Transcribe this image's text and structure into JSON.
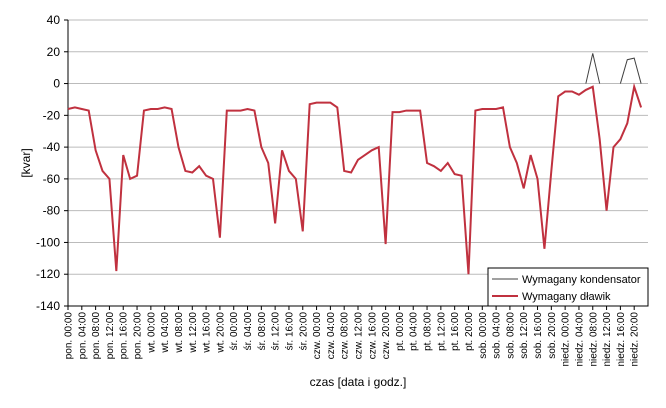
{
  "chart_data": {
    "type": "line",
    "y_label": "[kvar]",
    "x_label": "czas [data i godz.]",
    "x": [
      0,
      2,
      4,
      6,
      8,
      10,
      12,
      14,
      16,
      18,
      20,
      22,
      24,
      26,
      28,
      30,
      32,
      34,
      36,
      38,
      40,
      42,
      44,
      46,
      48,
      50,
      52,
      54,
      56,
      58,
      60,
      62,
      64,
      66,
      68,
      70,
      72,
      74,
      76,
      78,
      80,
      82,
      84,
      86,
      88,
      90,
      92,
      94,
      96,
      98,
      100,
      102,
      104,
      106,
      108,
      110,
      112,
      114,
      116,
      118,
      120,
      122,
      124,
      126,
      128,
      130,
      132,
      134,
      136,
      138,
      140,
      142,
      144,
      146,
      148,
      150,
      152,
      154,
      156,
      158,
      160,
      162,
      164,
      166
    ],
    "xlim": [
      0,
      168
    ],
    "xticks": [
      {
        "value": 0,
        "label": "pon. 00:00"
      },
      {
        "value": 4,
        "label": "pon. 04:00"
      },
      {
        "value": 8,
        "label": "pon. 08:00"
      },
      {
        "value": 12,
        "label": "pon. 12:00"
      },
      {
        "value": 16,
        "label": "pon. 16:00"
      },
      {
        "value": 20,
        "label": "pon. 20:00"
      },
      {
        "value": 24,
        "label": "wt. 00:00"
      },
      {
        "value": 28,
        "label": "wt. 04:00"
      },
      {
        "value": 32,
        "label": "wt. 08:00"
      },
      {
        "value": 36,
        "label": "wt. 12:00"
      },
      {
        "value": 40,
        "label": "wt. 16:00"
      },
      {
        "value": 44,
        "label": "wt. 20:00"
      },
      {
        "value": 48,
        "label": "śr. 00:00"
      },
      {
        "value": 52,
        "label": "śr. 04:00"
      },
      {
        "value": 56,
        "label": "śr. 08:00"
      },
      {
        "value": 60,
        "label": "śr. 12:00"
      },
      {
        "value": 64,
        "label": "śr. 16:00"
      },
      {
        "value": 68,
        "label": "śr. 20:00"
      },
      {
        "value": 72,
        "label": "czw. 00:00"
      },
      {
        "value": 76,
        "label": "czw. 04:00"
      },
      {
        "value": 80,
        "label": "czw. 08:00"
      },
      {
        "value": 84,
        "label": "czw. 12:00"
      },
      {
        "value": 88,
        "label": "czw. 16:00"
      },
      {
        "value": 92,
        "label": "czw. 20:00"
      },
      {
        "value": 96,
        "label": "pt. 00:00"
      },
      {
        "value": 100,
        "label": "pt. 04:00"
      },
      {
        "value": 104,
        "label": "pt. 08:00"
      },
      {
        "value": 108,
        "label": "pt. 12:00"
      },
      {
        "value": 112,
        "label": "pt. 16:00"
      },
      {
        "value": 116,
        "label": "pt. 20:00"
      },
      {
        "value": 120,
        "label": "sob. 00:00"
      },
      {
        "value": 124,
        "label": "sob. 04:00"
      },
      {
        "value": 128,
        "label": "sob. 08:00"
      },
      {
        "value": 132,
        "label": "sob. 12:00"
      },
      {
        "value": 136,
        "label": "sob. 16:00"
      },
      {
        "value": 140,
        "label": "sob. 20:00"
      },
      {
        "value": 144,
        "label": "niedz. 00:00"
      },
      {
        "value": 148,
        "label": "niedz. 04:00"
      },
      {
        "value": 152,
        "label": "niedz. 08:00"
      },
      {
        "value": 156,
        "label": "niedz. 12:00"
      },
      {
        "value": 160,
        "label": "niedz. 16:00"
      },
      {
        "value": 164,
        "label": "niedz. 20:00"
      }
    ],
    "ylim": [
      -140,
      40
    ],
    "yticks": [
      -140,
      -120,
      -100,
      -80,
      -60,
      -40,
      -20,
      0,
      20,
      40
    ],
    "grid": true,
    "legend": "lower right",
    "series": [
      {
        "name": "Wymagany kondensator",
        "color": "#404040",
        "values": [
          null,
          null,
          null,
          null,
          null,
          null,
          null,
          null,
          null,
          null,
          null,
          null,
          null,
          null,
          null,
          null,
          null,
          null,
          null,
          null,
          null,
          null,
          null,
          null,
          null,
          null,
          null,
          null,
          null,
          null,
          null,
          null,
          null,
          null,
          null,
          null,
          null,
          null,
          null,
          null,
          null,
          null,
          null,
          null,
          null,
          null,
          null,
          null,
          null,
          null,
          null,
          null,
          null,
          null,
          null,
          null,
          null,
          null,
          null,
          null,
          null,
          null,
          null,
          null,
          null,
          null,
          null,
          null,
          null,
          null,
          null,
          null,
          null,
          null,
          null,
          0,
          19,
          0,
          null,
          null,
          0,
          15,
          16,
          0
        ]
      },
      {
        "name": "Wymagany dławik",
        "color": "#c0313f",
        "values": [
          -16,
          -15,
          -16,
          -17,
          -42,
          -55,
          -60,
          -118,
          -45,
          -60,
          -58,
          -17,
          -16,
          -16,
          -15,
          -16,
          -40,
          -55,
          -56,
          -52,
          -58,
          -60,
          -97,
          -17,
          -17,
          -17,
          -16,
          -17,
          -40,
          -50,
          -88,
          -42,
          -55,
          -60,
          -93,
          -13,
          -12,
          -12,
          -12,
          -15,
          -55,
          -56,
          -48,
          -45,
          -42,
          -40,
          -101,
          -18,
          -18,
          -17,
          -17,
          -17,
          -50,
          -52,
          -55,
          -50,
          -57,
          -58,
          -120,
          -17,
          -16,
          -16,
          -16,
          -15,
          -40,
          -50,
          -66,
          -45,
          -60,
          -104,
          -55,
          -8,
          -5,
          -5,
          -7,
          -4,
          -2,
          -35,
          -80,
          -40,
          -35,
          -25,
          -2,
          -15
        ]
      }
    ]
  }
}
